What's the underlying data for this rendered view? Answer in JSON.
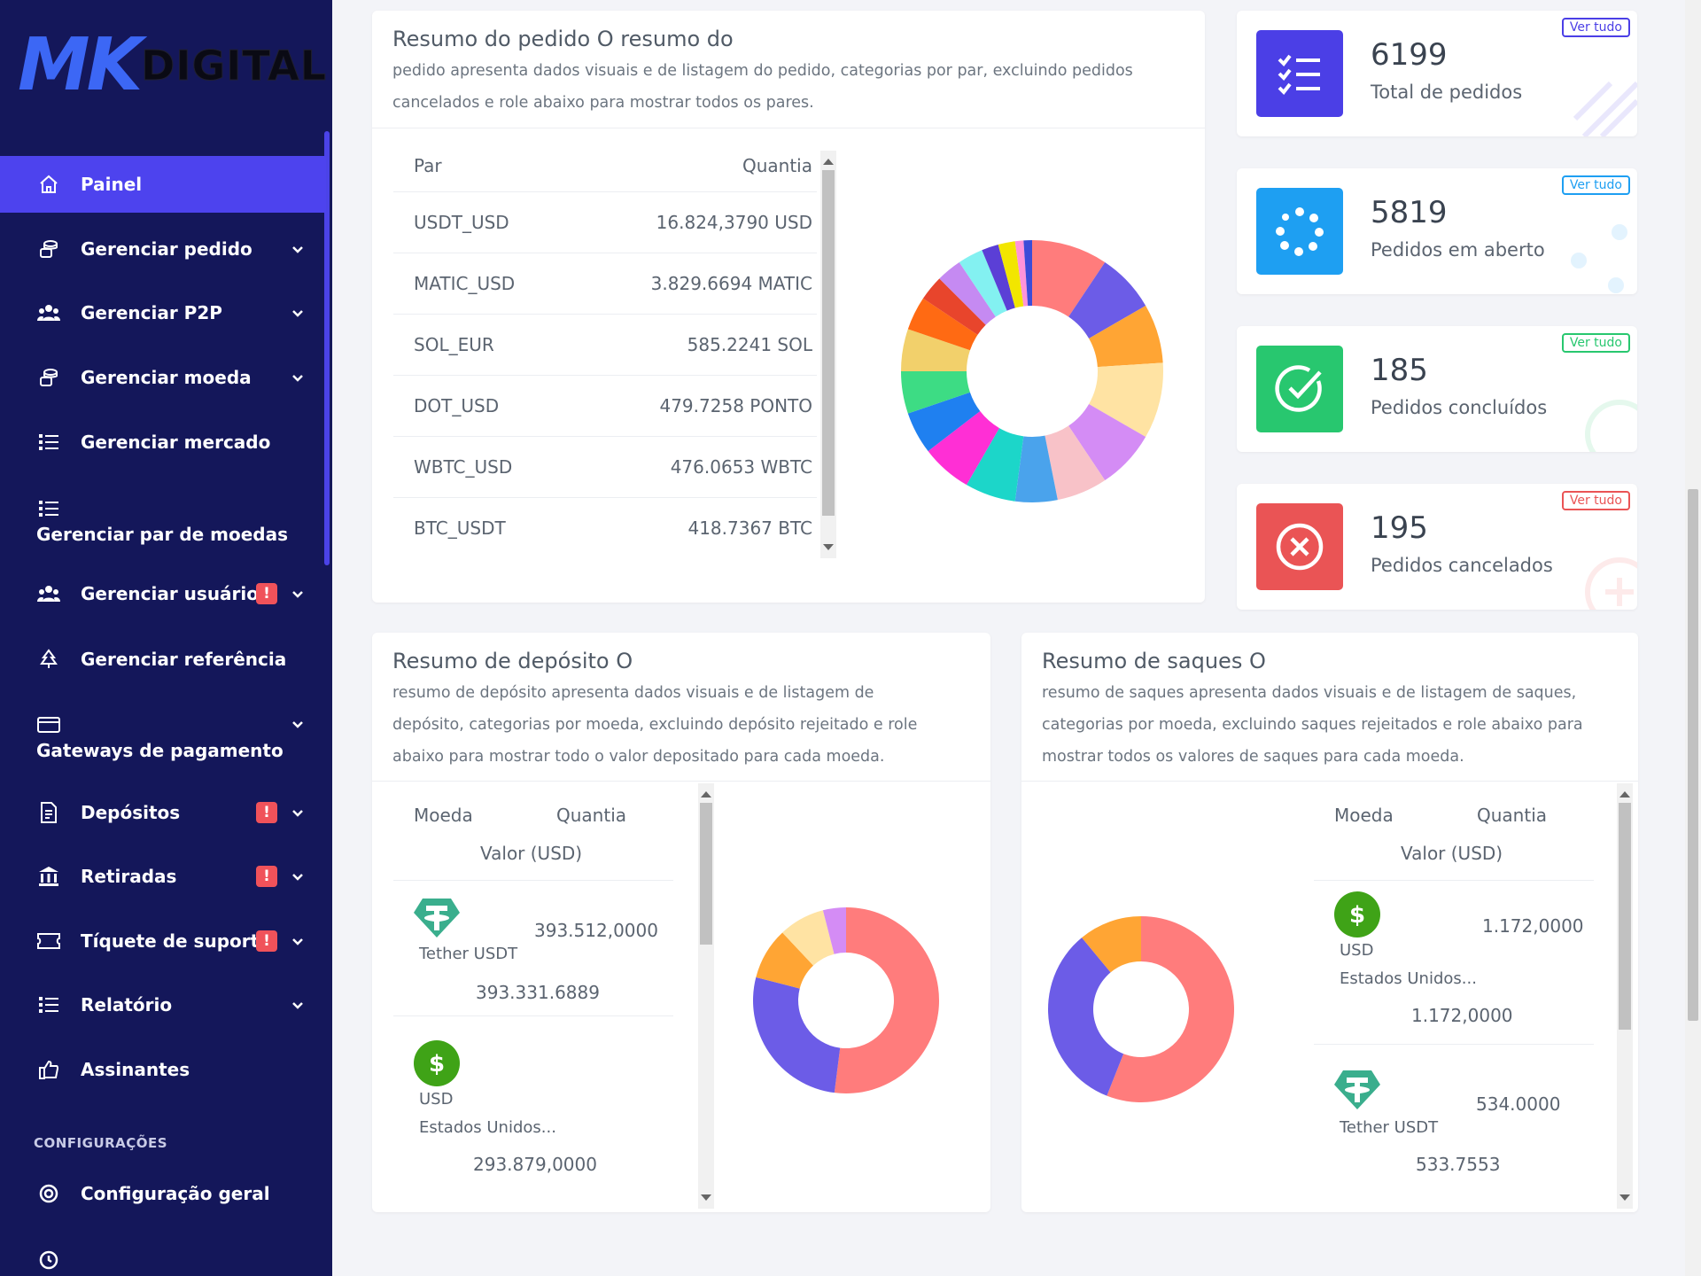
{
  "brand": {
    "logo_mk": "MK",
    "logo_digital": "DIGITAL"
  },
  "sidebar": {
    "items": [
      {
        "label": "Painel",
        "icon": "home-icon"
      },
      {
        "label": "Gerenciar pedido",
        "icon": "coins-icon"
      },
      {
        "label": "Gerenciar P2P",
        "icon": "users-icon"
      },
      {
        "label": "Gerenciar moeda",
        "icon": "coins-icon"
      },
      {
        "label": "Gerenciar mercado",
        "icon": "list-icon"
      },
      {
        "label": "Gerenciar par de moedas",
        "icon": "list-icon"
      },
      {
        "label": "Gerenciar usuários",
        "icon": "users-icon",
        "alert": "!"
      },
      {
        "label": "Gerenciar referência",
        "icon": "tree-icon"
      },
      {
        "label": "Gateways de pagamento",
        "icon": "card-icon"
      },
      {
        "label": "Depósitos",
        "icon": "invoice-icon",
        "alert": "!"
      },
      {
        "label": "Retiradas",
        "icon": "bank-icon",
        "alert": "!"
      },
      {
        "label": "Tíquete de suporte",
        "icon": "ticket-icon",
        "alert": "!"
      },
      {
        "label": "Relatório",
        "icon": "list-icon"
      },
      {
        "label": "Assinantes",
        "icon": "thumbs-up-icon"
      }
    ],
    "section_title": "CONFIGURAÇÕES",
    "settings_item": "Configuração geral",
    "clock_item_icon": "clock-icon"
  },
  "order_summary": {
    "title": "Resumo do pedido O resumo do",
    "desc_line1": "pedido apresenta dados visuais e de listagem do pedido, categorias por par, excluindo pedidos",
    "desc_line2": "cancelados e role abaixo para mostrar todos os pares.",
    "col_pair": "Par",
    "col_amount": "Quantia",
    "rows": [
      {
        "pair": "USDT_USD",
        "amount": "16.824,3790 USD"
      },
      {
        "pair": "MATIC_USD",
        "amount": "3.829.6694 MATIC"
      },
      {
        "pair": "SOL_EUR",
        "amount": "585.2241 SOL"
      },
      {
        "pair": "DOT_USD",
        "amount": "479.7258 PONTO"
      },
      {
        "pair": "WBTC_USD",
        "amount": "476.0653 WBTC"
      },
      {
        "pair": "BTC_USDT",
        "amount": "418.7367 BTC"
      }
    ]
  },
  "stats": [
    {
      "value": "6199",
      "label": "Total de pedidos",
      "link": "Ver tudo",
      "color": "#4b3fe6",
      "icon": "checklist-icon"
    },
    {
      "value": "5819",
      "label": "Pedidos em aberto",
      "link": "Ver tudo",
      "color": "#1e9ff2",
      "icon": "spinner-icon"
    },
    {
      "value": "185",
      "label": "Pedidos concluídos",
      "link": "Ver tudo",
      "color": "#28c76f",
      "icon": "check-circle-icon"
    },
    {
      "value": "195",
      "label": "Pedidos cancelados",
      "link": "Ver tudo",
      "color": "#ea5455",
      "icon": "x-circle-icon"
    }
  ],
  "deposit_summary": {
    "title": "Resumo de depósito O",
    "desc_line1": "resumo de depósito apresenta dados visuais e de listagem de",
    "desc_line2": "depósito, categorias por moeda, excluindo depósito rejeitado e role",
    "desc_line3": "abaixo para mostrar todo o valor depositado para cada moeda.",
    "col_currency": "Moeda",
    "col_amount": "Quantia",
    "col_value": "Valor (USD)",
    "rows": [
      {
        "coin": "Tether USDT",
        "coin_icon": "tether-icon",
        "amount": "393.512,0000",
        "value": "393.331.6889"
      },
      {
        "coin": "USD",
        "coin_sub": "Estados Unidos...",
        "coin_icon": "dollar-icon",
        "value": "293.879,0000"
      }
    ]
  },
  "withdraw_summary": {
    "title": "Resumo de saques O",
    "desc_line1": "resumo de saques apresenta dados visuais e de listagem de saques,",
    "desc_line2": "categorias por moeda, excluindo saques rejeitados e role abaixo para",
    "desc_line3": "mostrar todos os valores de saques para cada moeda.",
    "col_currency": "Moeda",
    "col_amount": "Quantia",
    "col_value": "Valor (USD)",
    "rows": [
      {
        "coin": "USD",
        "coin_sub": "Estados Unidos...",
        "coin_icon": "dollar-icon",
        "amount": "1.172,0000",
        "value": "1.172,0000"
      },
      {
        "coin": "Tether USDT",
        "coin_icon": "tether-icon",
        "amount": "534.0000",
        "value": "533.7553"
      }
    ]
  },
  "chart_data": [
    {
      "type": "pie",
      "title": "Resumo do pedido",
      "values": [
        9,
        7,
        7,
        9,
        7,
        6,
        5,
        6,
        6,
        5,
        5,
        5,
        4,
        3,
        3,
        3,
        2,
        2,
        1,
        1
      ],
      "colors": [
        "#ff7c7c",
        "#6c5ce7",
        "#ffa534",
        "#ffe3a3",
        "#d48cf5",
        "#f8c2c8",
        "#4aa3ec",
        "#1cd6c9",
        "#ff2fd5",
        "#1f80f0",
        "#3ddc84",
        "#f2d06b",
        "#ff6a13",
        "#e8452c",
        "#c58af2",
        "#83f1f1",
        "#5b3fd6",
        "#f2e600",
        "#ff93d9",
        "#3c4cd8"
      ]
    },
    {
      "type": "pie",
      "title": "Resumo de depósito",
      "values": [
        52,
        27,
        9,
        8,
        4
      ],
      "colors": [
        "#ff7c7c",
        "#6c5ce7",
        "#ffa534",
        "#ffe3a3",
        "#d48cf5"
      ]
    },
    {
      "type": "pie",
      "title": "Resumo de saques",
      "values": [
        56,
        33,
        11
      ],
      "colors": [
        "#ff7c7c",
        "#6c5ce7",
        "#ffa534"
      ]
    }
  ]
}
